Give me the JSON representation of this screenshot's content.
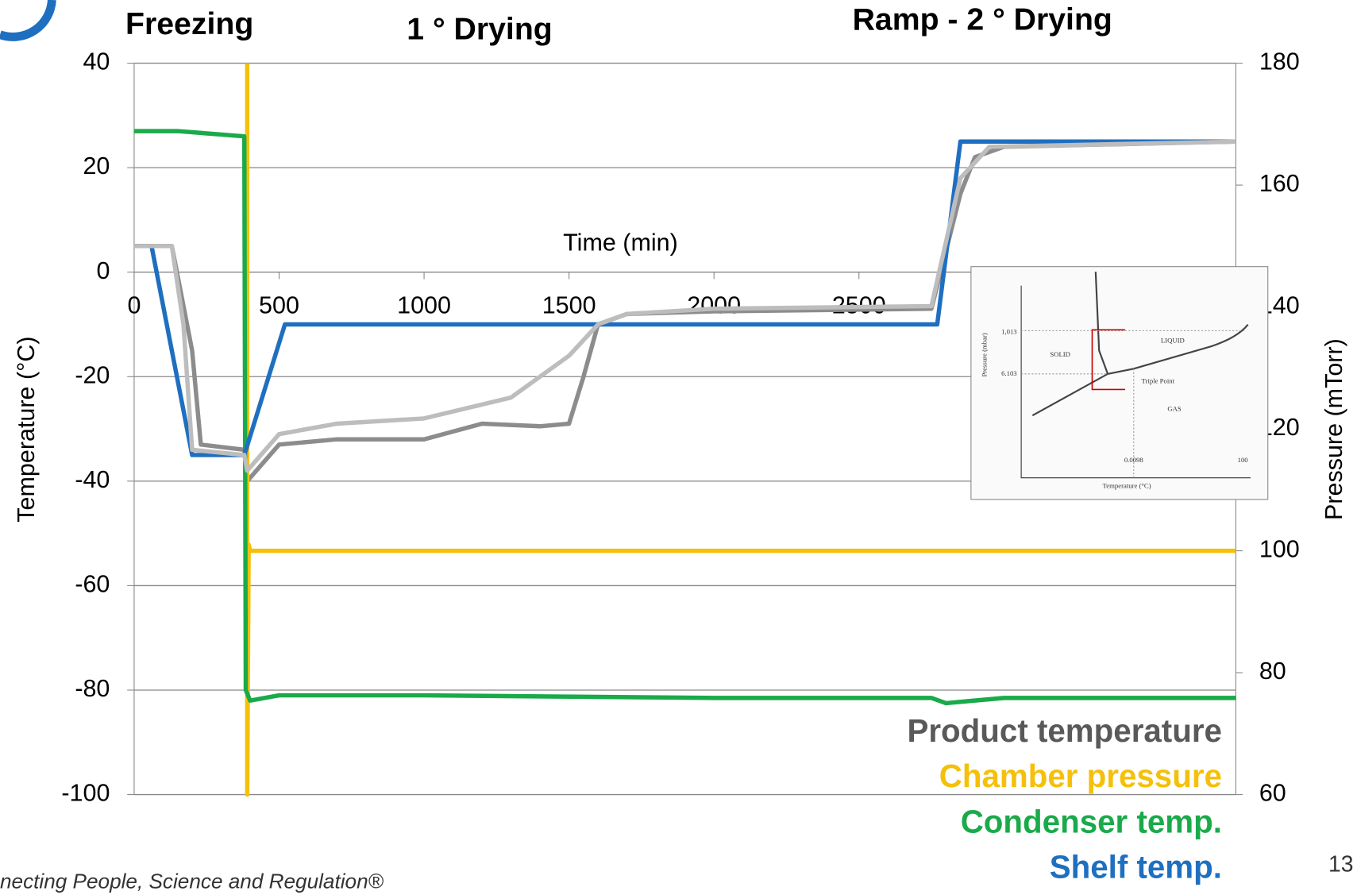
{
  "chart_data": {
    "type": "line",
    "annotations": [
      "Freezing",
      "1 ° Drying",
      "Ramp -  2 ° Drying"
    ],
    "xlabel": "Time (min)",
    "ylabel": "Temperature (°C)",
    "y2label": "Pressure (mTorr)",
    "xlim": [
      0,
      3800
    ],
    "xticks": [
      0,
      500,
      1000,
      1500,
      2000,
      2500
    ],
    "ylim": [
      -100,
      40
    ],
    "yticks": [
      -100,
      -80,
      -60,
      -40,
      -20,
      0,
      20,
      40
    ],
    "y2lim": [
      60,
      180
    ],
    "y2ticks": [
      60,
      80,
      100,
      120,
      140,
      160,
      180
    ],
    "grid": true,
    "series": [
      {
        "name": "Product temperature",
        "color": "#8c8c8c",
        "x": [
          0,
          130,
          200,
          230,
          380,
          390,
          500,
          700,
          1000,
          1200,
          1400,
          1500,
          1550,
          1600,
          1700,
          2000,
          2750,
          2850,
          2900,
          3000,
          3800
        ],
        "values": [
          5,
          5,
          -15,
          -33,
          -34,
          -40,
          -33,
          -32,
          -32,
          -29,
          -29.5,
          -29,
          -20,
          -10,
          -8,
          -7.5,
          -7,
          15,
          22,
          24,
          25
        ]
      },
      {
        "name": "Chamber pressure",
        "color": "#f5c00a",
        "axis": "y2",
        "x": [
          390,
          390,
          395,
          400,
          3800
        ],
        "values": [
          180,
          60,
          101,
          100,
          100
        ]
      },
      {
        "name": "Condenser temp.",
        "color": "#1aaa4a",
        "x": [
          0,
          150,
          380,
          385,
          400,
          500,
          1000,
          2000,
          2750,
          2800,
          2900,
          3000,
          3800
        ],
        "values": [
          27,
          27,
          26,
          -80,
          -82,
          -81,
          -81,
          -81.5,
          -81.5,
          -82.5,
          -82,
          -81.5,
          -81.5
        ]
      },
      {
        "name": "Shelf temp.",
        "color": "#1f6fc0",
        "x": [
          0,
          60,
          200,
          380,
          520,
          2770,
          2850,
          3800
        ],
        "values": [
          5,
          5,
          -35,
          -35,
          -10,
          -10,
          25,
          25
        ]
      },
      {
        "color": "#bdbdbd",
        "x": [
          0,
          130,
          170,
          200,
          380,
          390,
          500,
          700,
          1000,
          1300,
          1500,
          1600,
          1700,
          2000,
          2750,
          2850,
          2950,
          3800
        ],
        "values": [
          5,
          5,
          -10,
          -34,
          -35,
          -38,
          -31,
          -29,
          -28,
          -24,
          -16,
          -10,
          -8,
          -7,
          -6.5,
          18,
          24,
          25
        ]
      }
    ]
  },
  "inset": {
    "ylabel": "Pressure (mbar)",
    "yvalues": [
      "1,013",
      "6.103"
    ],
    "regions": [
      "SOLID",
      "LIQUID",
      "Triple Point",
      "GAS"
    ],
    "xvalues": [
      "0.0098",
      "100"
    ],
    "xlabel": "Temperature (°C)"
  },
  "footer": {
    "tagline": "necting People, Science and Regulation®",
    "page": "13"
  }
}
